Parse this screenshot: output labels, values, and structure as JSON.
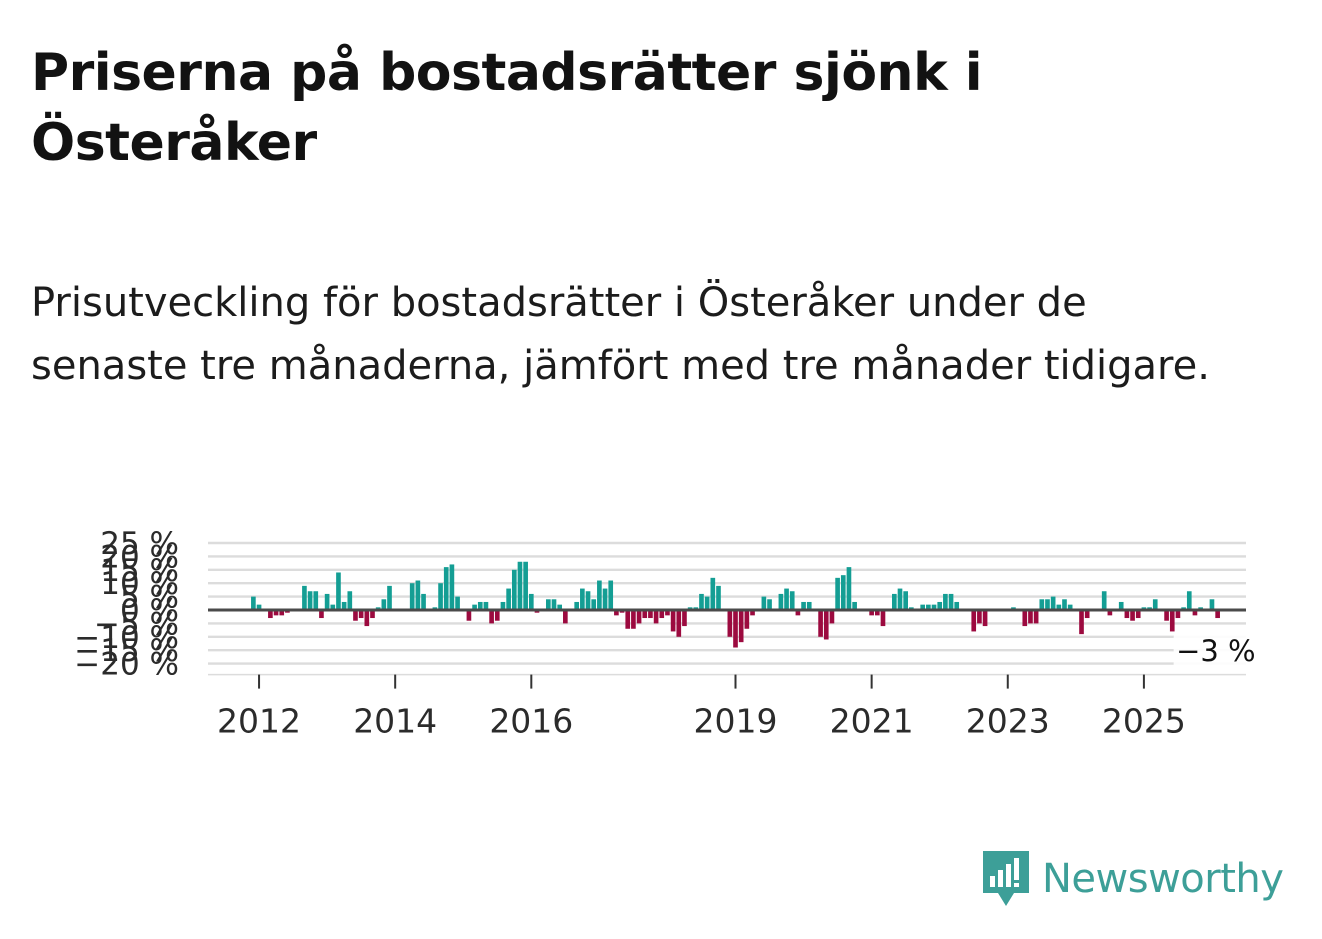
{
  "header": {
    "title": "Priserna på bostadsrätter sjönk i Österåker",
    "subtitle": "Prisutveckling för bostadsrätter i Österåker under de senaste tre månaderna, jämfört med tre månader tidigare."
  },
  "chart_data": {
    "type": "bar",
    "title": "Priserna på bostadsrätter sjönk i Österåker",
    "subtitle": "Prisutveckling för bostadsrätter i Österåker under de senaste tre månaderna, jämfört med tre månader tidigare.",
    "xlabel": "",
    "ylabel": "",
    "ylim": [
      -20,
      25
    ],
    "y_ticks": [
      -20,
      -15,
      -10,
      -5,
      0,
      5,
      10,
      15,
      20,
      25
    ],
    "y_tick_labels": [
      "−20 %",
      "−15 %",
      "−10 %",
      "−5 %",
      "0 %",
      "5 %",
      "10 %",
      "15 %",
      "20 %",
      "25 %"
    ],
    "x_ticks": [
      2012,
      2014,
      2016,
      2019,
      2021,
      2023,
      2025
    ],
    "x_tick_labels": [
      "2012",
      "2014",
      "2016",
      "2019",
      "2021",
      "2023",
      "2025"
    ],
    "x_range": [
      2011.25,
      2026.5
    ],
    "start_date": [
      2011,
      12
    ],
    "series": [
      {
        "name": "Prisutveckling",
        "values": [
          5,
          2,
          0,
          -3,
          -2,
          -2,
          -1,
          0,
          0,
          9,
          7,
          7,
          -3,
          6,
          2,
          14,
          3,
          7,
          -4,
          -3,
          -6,
          -3,
          1,
          4,
          9,
          0,
          0,
          0,
          10,
          11,
          6,
          0,
          1,
          10,
          16,
          17,
          5,
          0,
          -4,
          2,
          3,
          3,
          -5,
          -4,
          3,
          8,
          15,
          18,
          18,
          6,
          -1,
          0,
          4,
          4,
          2,
          -5,
          0,
          3,
          8,
          7,
          4,
          11,
          8,
          11,
          -2,
          -1,
          -7,
          -7,
          -5,
          -3,
          -3,
          -5,
          -3,
          -2,
          -8,
          -10,
          -6,
          1,
          1,
          6,
          5,
          12,
          9,
          0,
          -10,
          -14,
          -12,
          -7,
          -2,
          0,
          5,
          4,
          0,
          6,
          8,
          7,
          -2,
          3,
          3,
          0,
          -10,
          -11,
          -5,
          12,
          13,
          16,
          3,
          0,
          0,
          -2,
          -2,
          -6,
          0,
          6,
          8,
          7,
          1,
          0,
          2,
          2,
          2,
          3,
          6,
          6,
          3,
          0,
          0,
          -8,
          -5,
          -6,
          0,
          0,
          0,
          0,
          1,
          0,
          -6,
          -5,
          -5,
          4,
          4,
          5,
          2,
          4,
          2,
          0,
          -9,
          -3,
          0,
          0,
          7,
          -2,
          0,
          3,
          -3,
          -4,
          -3,
          1,
          1,
          4,
          0,
          -4,
          -8,
          -3,
          1,
          7,
          -2,
          1,
          0,
          4,
          -3
        ],
        "positive_color": "#149e94",
        "negative_color": "#9c0a3f"
      }
    ],
    "annotation": {
      "label": "−3 %",
      "value": -3,
      "position": "last-bar"
    }
  },
  "colors": {
    "positive": "#149e94",
    "negative": "#9c0a3f",
    "gridline": "#dcdcdc",
    "zero_line": "#4a4a4a",
    "brand": "#3d9f98"
  },
  "logo": {
    "name": "Newsworthy",
    "icon": "newsworthy-bars-icon"
  }
}
